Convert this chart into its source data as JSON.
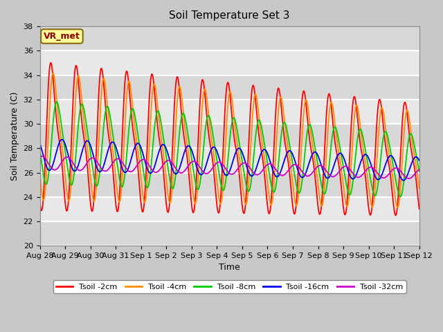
{
  "title": "Soil Temperature Set 3",
  "xlabel": "Time",
  "ylabel": "Soil Temperature (C)",
  "ylim": [
    20,
    38
  ],
  "yticks": [
    20,
    22,
    24,
    26,
    28,
    30,
    32,
    34,
    36,
    38
  ],
  "x_labels": [
    "Aug 28",
    "Aug 29",
    "Aug 30",
    "Aug 31",
    "Sep 1",
    "Sep 2",
    "Sep 3",
    "Sep 4",
    "Sep 5",
    "Sep 6",
    "Sep 7",
    "Sep 8",
    "Sep 9",
    "Sep 10",
    "Sep 11",
    "Sep 12"
  ],
  "colors": {
    "Tsoil -2cm": "#FF0000",
    "Tsoil -4cm": "#FF8C00",
    "Tsoil -8cm": "#00CC00",
    "Tsoil -16cm": "#0000EE",
    "Tsoil -32cm": "#CC00CC"
  },
  "fig_bg_color": "#C8C8C8",
  "plot_bg_color": "#E8E8E8",
  "annotation_box_color": "#FFFF99",
  "annotation_text": "VR_met",
  "annotation_text_color": "#8B0000",
  "grid_color": "#FFFFFF",
  "num_days": 15,
  "samples_per_day": 144
}
